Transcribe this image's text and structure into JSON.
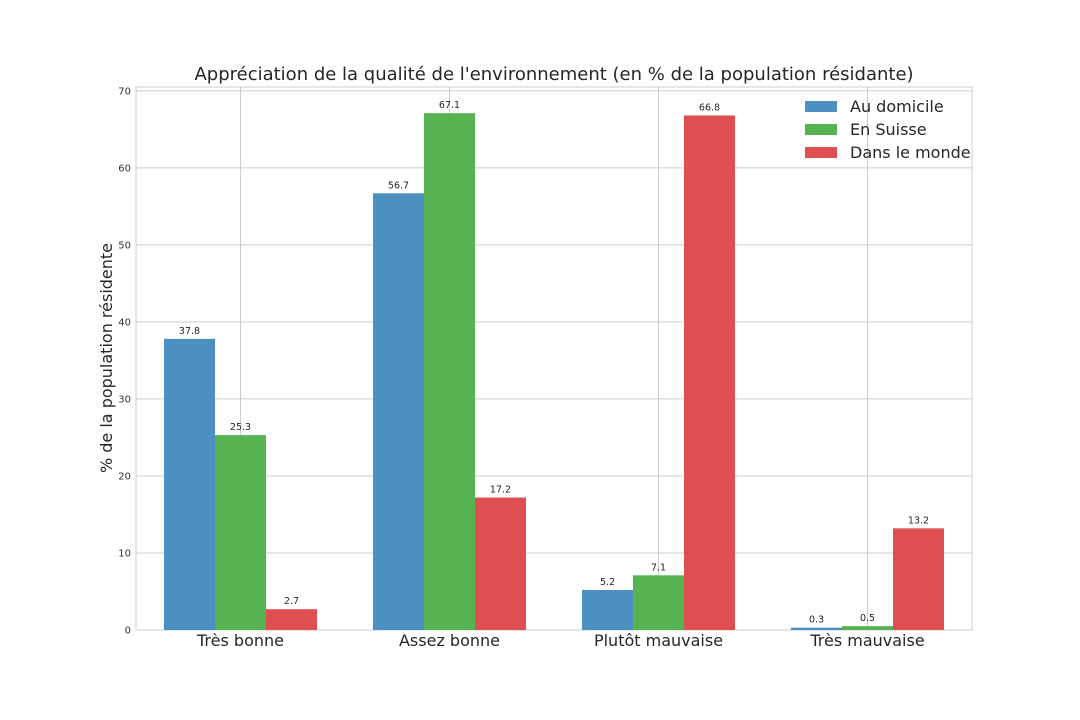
{
  "chart_data": {
    "type": "bar",
    "title": "Appréciation de la qualité de l'environnement (en % de la population résidante)",
    "xlabel": "",
    "ylabel": "% de la population résidente",
    "categories": [
      "Très bonne",
      "Assez bonne",
      "Plutôt mauvaise",
      "Très mauvaise"
    ],
    "series": [
      {
        "name": "Au domicile",
        "color": "#4c90c2",
        "values": [
          37.8,
          56.7,
          5.2,
          0.3
        ]
      },
      {
        "name": "En Suisse",
        "color": "#56b352",
        "values": [
          25.3,
          67.1,
          7.1,
          0.5
        ]
      },
      {
        "name": "Dans le monde",
        "color": "#de4f52",
        "values": [
          2.7,
          17.2,
          66.8,
          13.2
        ]
      }
    ],
    "ylim": [
      0,
      70.5
    ],
    "yticks": [
      0,
      10,
      20,
      30,
      40,
      50,
      60,
      70
    ],
    "grid": true,
    "legend_position": "top-right"
  }
}
